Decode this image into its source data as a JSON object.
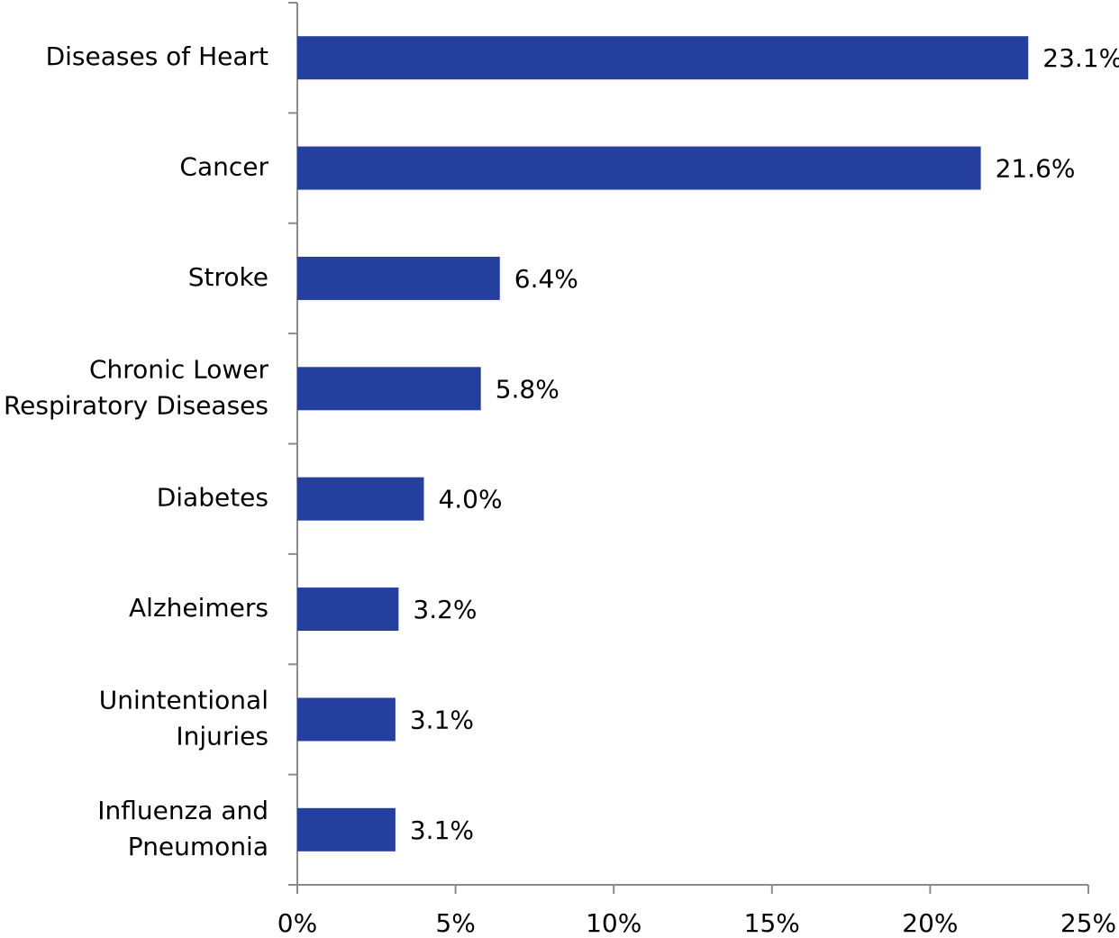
{
  "chart_data": {
    "type": "bar",
    "orientation": "horizontal",
    "categories": [
      [
        "Diseases of Heart"
      ],
      [
        "Cancer"
      ],
      [
        "Stroke"
      ],
      [
        "Chronic Lower",
        "Respiratory Diseases"
      ],
      [
        "Diabetes"
      ],
      [
        "Alzheimers"
      ],
      [
        "Unintentional",
        "Injuries"
      ],
      [
        "Influenza and",
        "Pneumonia"
      ]
    ],
    "values": [
      23.1,
      21.6,
      6.4,
      5.8,
      4.0,
      3.2,
      3.1,
      3.1
    ],
    "value_labels": [
      "23.1%",
      "21.6%",
      "6.4%",
      "5.8%",
      "4.0%",
      "3.2%",
      "3.1%",
      "3.1%"
    ],
    "color": "#253f9e",
    "xlim": [
      0,
      25
    ],
    "xticks": [
      {
        "value": 0,
        "label": "0%"
      },
      {
        "value": 5,
        "label": "5%"
      },
      {
        "value": 10,
        "label": "10%"
      },
      {
        "value": 15,
        "label": "15%"
      },
      {
        "value": 20,
        "label": "20%"
      },
      {
        "value": 25,
        "label": "25%"
      }
    ]
  }
}
